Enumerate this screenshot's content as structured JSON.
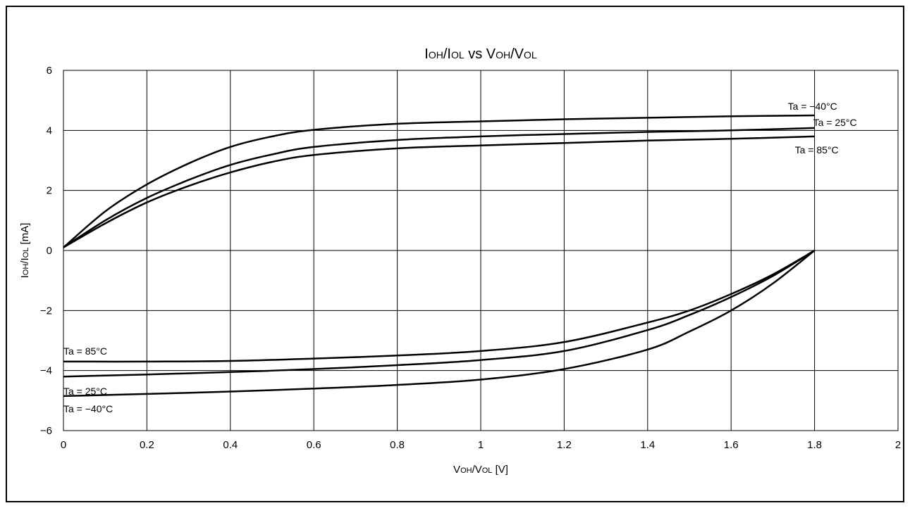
{
  "chart_data": {
    "type": "line",
    "title": {
      "parts": [
        {
          "t": "I",
          "sub": false
        },
        {
          "t": "OH",
          "sub": true
        },
        {
          "t": "/I",
          "sub": false
        },
        {
          "t": "OL",
          "sub": true
        },
        {
          "t": " vs V",
          "sub": false
        },
        {
          "t": "OH",
          "sub": true
        },
        {
          "t": "/V",
          "sub": false
        },
        {
          "t": "OL",
          "sub": true
        }
      ]
    },
    "xlabel": {
      "parts": [
        {
          "t": "V",
          "sub": false
        },
        {
          "t": "OH",
          "sub": true
        },
        {
          "t": "/V",
          "sub": false
        },
        {
          "t": "OL",
          "sub": true
        },
        {
          "t": " [V]",
          "sub": false
        }
      ]
    },
    "ylabel": {
      "parts": [
        {
          "t": "I",
          "sub": false
        },
        {
          "t": "OH",
          "sub": true
        },
        {
          "t": "/I",
          "sub": false
        },
        {
          "t": "OL",
          "sub": true
        },
        {
          "t": " [mA]",
          "sub": false
        }
      ]
    },
    "xlim": [
      0,
      2
    ],
    "ylim": [
      -6,
      6
    ],
    "xticks": [
      0,
      0.2,
      0.4,
      0.6,
      0.8,
      1,
      1.2,
      1.4,
      1.6,
      1.8,
      2
    ],
    "xtick_labels": [
      "0",
      "0.2",
      "0.4",
      "0.6",
      "0.8",
      "1",
      "1.2",
      "1.4",
      "1.6",
      "1.8",
      "2"
    ],
    "yticks": [
      -6,
      -4,
      -2,
      0,
      2,
      4,
      6
    ],
    "ytick_labels": [
      "−6",
      "−4",
      "−2",
      "0",
      "2",
      "4",
      "6"
    ],
    "grid": true,
    "series": [
      {
        "name": "Ta = −40°C",
        "group": "IOH",
        "x": [
          0,
          0.1,
          0.2,
          0.3,
          0.4,
          0.5,
          0.6,
          0.8,
          1.0,
          1.2,
          1.4,
          1.6,
          1.8
        ],
        "y": [
          0.1,
          1.3,
          2.2,
          2.9,
          3.45,
          3.8,
          4.02,
          4.22,
          4.3,
          4.37,
          4.42,
          4.47,
          4.5
        ]
      },
      {
        "name": "Ta = 25°C",
        "group": "IOH",
        "x": [
          0,
          0.1,
          0.2,
          0.3,
          0.4,
          0.5,
          0.6,
          0.8,
          1.0,
          1.2,
          1.4,
          1.6,
          1.8
        ],
        "y": [
          0.1,
          1.0,
          1.75,
          2.35,
          2.85,
          3.2,
          3.45,
          3.68,
          3.8,
          3.88,
          3.95,
          4.0,
          4.08
        ]
      },
      {
        "name": "Ta = 85°C",
        "group": "IOH",
        "x": [
          0,
          0.1,
          0.2,
          0.3,
          0.4,
          0.5,
          0.6,
          0.8,
          1.0,
          1.2,
          1.4,
          1.6,
          1.8
        ],
        "y": [
          0.1,
          0.9,
          1.6,
          2.15,
          2.6,
          2.95,
          3.18,
          3.4,
          3.5,
          3.58,
          3.66,
          3.72,
          3.8
        ]
      },
      {
        "name": "Ta = 85°C",
        "group": "IOL",
        "x": [
          0,
          0.2,
          0.4,
          0.6,
          0.8,
          1.0,
          1.2,
          1.4,
          1.5,
          1.6,
          1.7,
          1.8
        ],
        "y": [
          -3.7,
          -3.7,
          -3.68,
          -3.6,
          -3.5,
          -3.35,
          -3.05,
          -2.4,
          -2.0,
          -1.45,
          -0.8,
          0
        ]
      },
      {
        "name": "Ta = 25°C",
        "group": "IOL",
        "x": [
          0,
          0.2,
          0.4,
          0.6,
          0.8,
          1.0,
          1.2,
          1.4,
          1.5,
          1.6,
          1.7,
          1.8
        ],
        "y": [
          -4.2,
          -4.13,
          -4.05,
          -3.95,
          -3.82,
          -3.65,
          -3.35,
          -2.65,
          -2.15,
          -1.55,
          -0.85,
          0
        ]
      },
      {
        "name": "Ta = −40°C",
        "group": "IOL",
        "x": [
          0,
          0.2,
          0.4,
          0.6,
          0.8,
          1.0,
          1.2,
          1.4,
          1.5,
          1.6,
          1.7,
          1.8
        ],
        "y": [
          -4.85,
          -4.78,
          -4.7,
          -4.6,
          -4.48,
          -4.3,
          -3.95,
          -3.3,
          -2.7,
          -2.0,
          -1.1,
          0
        ]
      }
    ],
    "curve_labels": [
      {
        "text": "Ta = −40°C",
        "x": 1.8,
        "y": 4.5
      },
      {
        "text": "Ta = 25°C",
        "x": 1.8,
        "y": 4.08
      },
      {
        "text": "Ta = 85°C",
        "x": 1.8,
        "y": 3.8
      },
      {
        "text": "Ta = 85°C",
        "x": 0,
        "y": -3.7
      },
      {
        "text": "Ta = 25°C",
        "x": 0,
        "y": -4.2
      },
      {
        "text": "Ta = −40°C",
        "x": 0,
        "y": -4.85
      }
    ]
  }
}
